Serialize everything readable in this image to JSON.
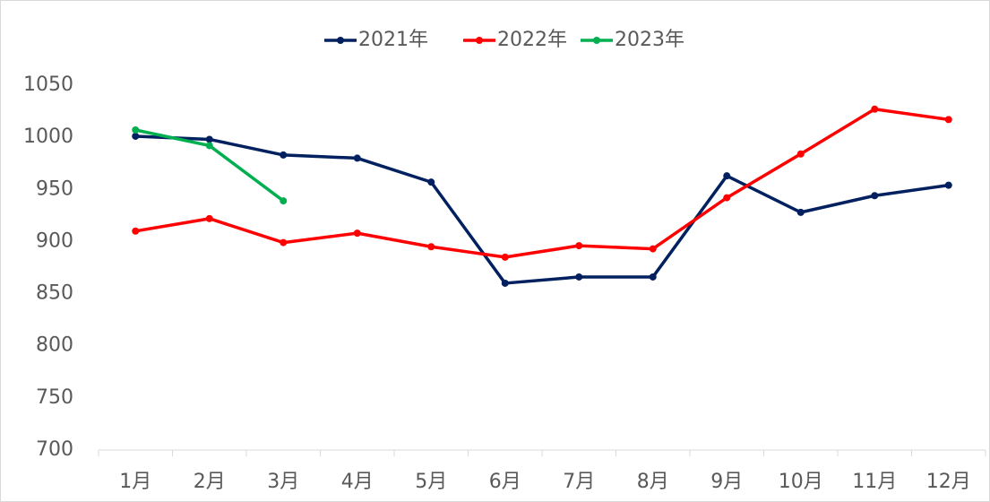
{
  "chart_data": {
    "type": "line",
    "categories": [
      "1月",
      "2月",
      "3月",
      "4月",
      "5月",
      "6月",
      "7月",
      "8月",
      "9月",
      "10月",
      "11月",
      "12月"
    ],
    "series": [
      {
        "name": "2021年",
        "color": "#002060",
        "values": [
          1001,
          998,
          983,
          980,
          957,
          860,
          866,
          866,
          963,
          928,
          944,
          954
        ]
      },
      {
        "name": "2022年",
        "color": "#ff0000",
        "values": [
          910,
          922,
          899,
          908,
          895,
          885,
          896,
          893,
          942,
          984,
          1027,
          1017
        ]
      },
      {
        "name": "2023年",
        "color": "#00b050",
        "values": [
          1007,
          992,
          939,
          null,
          null,
          null,
          null,
          null,
          null,
          null,
          null,
          null
        ]
      }
    ],
    "ylim": [
      700,
      1050
    ],
    "yticks": [
      700,
      750,
      800,
      850,
      900,
      950,
      1000,
      1050
    ],
    "grid": false,
    "legend": "top"
  }
}
